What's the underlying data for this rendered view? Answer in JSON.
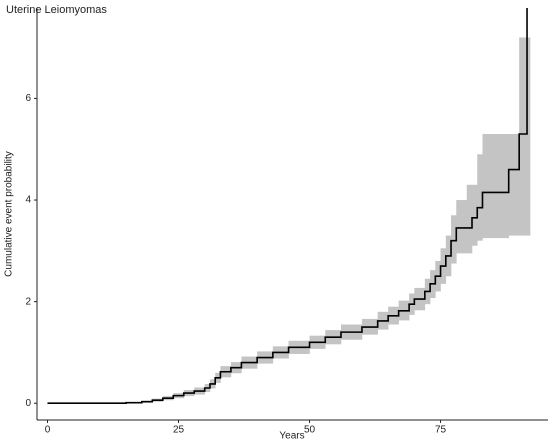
{
  "chart_data": {
    "type": "step",
    "title": "Uterine Leiomyomas",
    "xlabel": "Years",
    "ylabel": "Cumulative event probability",
    "x": [
      0,
      15,
      18,
      20,
      22,
      24,
      26,
      28,
      30,
      31,
      32,
      33,
      35,
      37,
      40,
      43,
      46,
      50,
      53,
      56,
      60,
      63,
      65,
      67,
      69,
      70,
      72,
      73,
      74,
      75,
      76,
      77,
      78,
      80,
      81,
      82,
      83,
      86,
      88,
      90,
      91.5
    ],
    "y": [
      0,
      0.01,
      0.03,
      0.06,
      0.1,
      0.15,
      0.2,
      0.24,
      0.3,
      0.38,
      0.5,
      0.62,
      0.7,
      0.8,
      0.9,
      1.0,
      1.1,
      1.2,
      1.3,
      1.4,
      1.5,
      1.62,
      1.72,
      1.82,
      1.95,
      2.05,
      2.2,
      2.35,
      2.5,
      2.7,
      2.9,
      3.2,
      3.45,
      3.45,
      3.65,
      3.85,
      4.15,
      4.15,
      4.6,
      5.3,
      7.8
    ],
    "lower": [
      0,
      0,
      0.01,
      0.03,
      0.06,
      0.1,
      0.14,
      0.17,
      0.22,
      0.29,
      0.4,
      0.51,
      0.59,
      0.68,
      0.78,
      0.88,
      0.97,
      1.07,
      1.16,
      1.25,
      1.35,
      1.45,
      1.55,
      1.63,
      1.74,
      1.83,
      1.95,
      2.07,
      2.2,
      2.35,
      2.5,
      2.75,
      2.95,
      2.95,
      3.1,
      3.2,
      3.25,
      3.25,
      3.3,
      3.3,
      3.3
    ],
    "upper": [
      0,
      0.02,
      0.05,
      0.09,
      0.14,
      0.2,
      0.26,
      0.31,
      0.38,
      0.47,
      0.6,
      0.73,
      0.81,
      0.92,
      1.02,
      1.12,
      1.23,
      1.33,
      1.44,
      1.55,
      1.66,
      1.8,
      1.9,
      2.02,
      2.16,
      2.27,
      2.45,
      2.62,
      2.8,
      3.05,
      3.3,
      3.7,
      4.0,
      4.3,
      4.3,
      4.9,
      5.3,
      5.3,
      5.3,
      7.2,
      7.2
    ],
    "line_color": "#000000",
    "band_color": "#c4c4c4",
    "xlim": [
      -2,
      95.5
    ],
    "ylim": [
      -0.33,
      7.78
    ],
    "xticks": [
      0,
      25,
      50,
      75
    ],
    "yticks": [
      0,
      2,
      4,
      6
    ],
    "grid": false
  }
}
